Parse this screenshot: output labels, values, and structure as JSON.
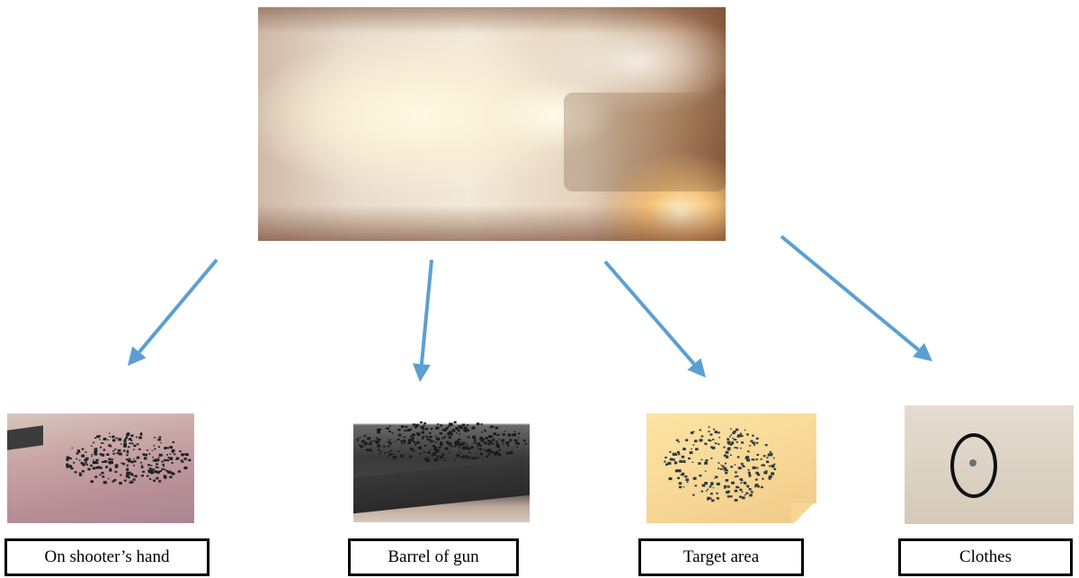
{
  "diagram": {
    "arrow_color": "#5b9fd2",
    "source_image": "gunshot-smoke-photo",
    "targets": [
      {
        "label": "On shooter’s hand"
      },
      {
        "label": "Barrel of gun"
      },
      {
        "label": "Target area"
      },
      {
        "label": "Clothes"
      }
    ]
  }
}
